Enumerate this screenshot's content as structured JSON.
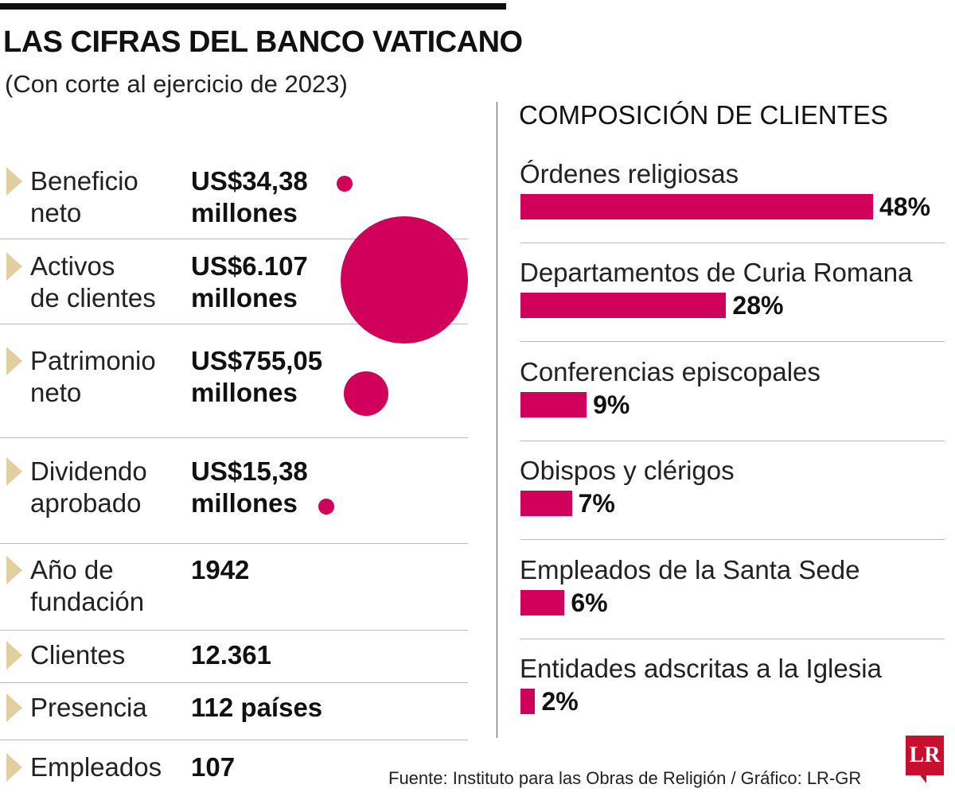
{
  "header": {
    "title": "LAS CIFRAS DEL BANCO VATICANO",
    "subtitle": "(Con corte al ejercicio de 2023)"
  },
  "stats": [
    {
      "label1": "Beneficio",
      "label2": "neto",
      "value1": "US$34,38",
      "value2": "millones",
      "amount_musd": 34.38
    },
    {
      "label1": "Activos",
      "label2": "de clientes",
      "value1": "US$6.107",
      "value2": "millones",
      "amount_musd": 6107
    },
    {
      "label1": "Patrimonio",
      "label2": "neto",
      "value1": "US$755,05",
      "value2": "millones",
      "amount_musd": 755.05
    },
    {
      "label1": "Dividendo",
      "label2": "aprobado",
      "value1": "US$15,38",
      "value2": "millones",
      "amount_musd": 15.38
    },
    {
      "label1": "Año de",
      "label2": "fundación",
      "value1": "1942",
      "value2": ""
    },
    {
      "label1": "Clientes",
      "label2": "",
      "value1": "12.361",
      "value2": ""
    },
    {
      "label1": "Presencia",
      "label2": "",
      "value1": "112 países",
      "value2": ""
    },
    {
      "label1": "Empleados",
      "label2": "",
      "value1": "107",
      "value2": ""
    }
  ],
  "chart_data": {
    "type": "bar",
    "title": "COMPOSICIÓN DE CLIENTES",
    "categories": [
      "Órdenes religiosas",
      "Departamentos de Curia Romana",
      "Conferencias episcopales",
      "Obispos y clérigos",
      "Empleados de la Santa Sede",
      "Entidades adscritas a la Iglesia"
    ],
    "values": [
      48,
      28,
      9,
      7,
      6,
      2
    ],
    "labels": [
      "48%",
      "28%",
      "9%",
      "7%",
      "6%",
      "2%"
    ],
    "unit": "%",
    "color": "#d1005a"
  },
  "footer": {
    "source": "Fuente: Instituto para las Obras de Religión / Gráfico: LR-GR",
    "logo": "LR"
  }
}
